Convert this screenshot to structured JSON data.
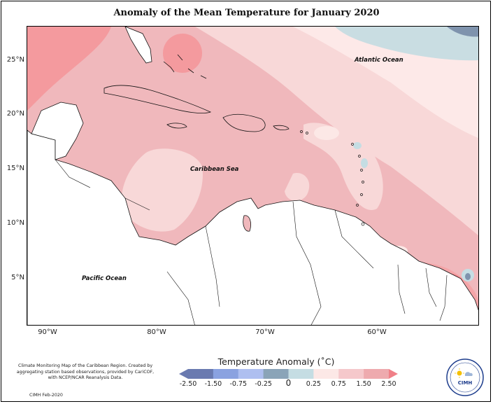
{
  "title": "Anomaly of the Mean Temperature for January 2020",
  "map_labels": {
    "atlantic": "Atlantic Ocean",
    "caribbean": "Caribbean Sea",
    "pacific": "Pacific Ocean"
  },
  "latitude_ticks": [
    "25°N",
    "20°N",
    "15°N",
    "10°N",
    "5°N"
  ],
  "longitude_ticks": [
    "90°W",
    "80°W",
    "70°W",
    "60°W"
  ],
  "legend": {
    "title": "Temperature Anomaly (˚C)",
    "labels": [
      "-2.50",
      "-1.50",
      "-0.75",
      "-0.25",
      "0",
      "0.25",
      "0.75",
      "1.50",
      "2.50"
    ],
    "colors": [
      "#6a7ab0",
      "#8aa2e0",
      "#aebff0",
      "#8aa4b8",
      "#c5dde3",
      "#fce8e6",
      "#f5c8cb",
      "#eeaaae",
      "#f08088"
    ]
  },
  "credit": {
    "text": "Climate Monitoring Map of the Caribbean Region. Created by aggregating station based observations, provided by CariCOF, with NCEP/NCAR Reanalysis Data.",
    "date": "CIMH Feb-2020"
  },
  "logo": {
    "text": "CIMH",
    "icon": "cimh-logo-icon"
  }
}
